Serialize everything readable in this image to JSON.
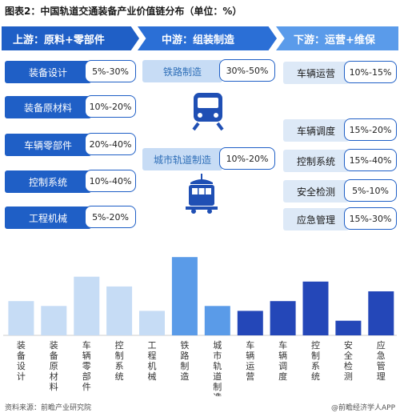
{
  "title": "图表2：中国轨道交通装备产业价值链分布（单位：%）",
  "stages": {
    "upstream": "上游：原料+零部件",
    "midstream": "中游：组装制造",
    "downstream": "下游：运营+维保"
  },
  "upstream_items": [
    {
      "label": "装备设计",
      "value": "5%-30%"
    },
    {
      "label": "装备原材料",
      "value": "10%-20%"
    },
    {
      "label": "车辆零部件",
      "value": "20%-40%"
    },
    {
      "label": "控制系统",
      "value": "10%-40%"
    },
    {
      "label": "工程机械",
      "value": "5%-20%"
    }
  ],
  "midstream_items": [
    {
      "label": "铁路制造",
      "value": "30%-50%"
    },
    {
      "label": "城市轨道制造",
      "value": "10%-20%"
    }
  ],
  "downstream_items": [
    {
      "label": "车辆运营",
      "value": "10%-15%"
    },
    {
      "label": "车辆调度",
      "value": "15%-20%"
    },
    {
      "label": "控制系统",
      "value": "15%-40%"
    },
    {
      "label": "安全检测",
      "value": "5%-10%"
    },
    {
      "label": "应急管理",
      "value": "15%-30%"
    }
  ],
  "icons": [
    "train-front-icon",
    "tram-icon"
  ],
  "colors": {
    "upstream": "#1f5fc6",
    "midstream_bar": "#5a9be8",
    "upstream_bar": "#c6dcf5",
    "downstream_bar": "#2447b8"
  },
  "chart_data": {
    "type": "bar",
    "categories": [
      "装备设计",
      "装备原材料",
      "车辆零部件",
      "控制系统",
      "工程机械",
      "铁路制造",
      "城市轨道制造",
      "车辆运营",
      "车辆调度",
      "控制系统",
      "安全检测",
      "应急管理"
    ],
    "values": [
      17.5,
      15,
      30,
      25,
      12.5,
      40,
      15,
      12.5,
      17.5,
      27.5,
      7.5,
      22.5
    ],
    "groups": [
      "upstream",
      "upstream",
      "upstream",
      "upstream",
      "upstream",
      "midstream",
      "midstream",
      "downstream",
      "downstream",
      "downstream",
      "downstream",
      "downstream"
    ],
    "title": "",
    "xlabel": "",
    "ylabel": "",
    "ylim": [
      0,
      45
    ]
  },
  "footer": {
    "source": "资料来源：前瞻产业研究院",
    "brand": "@前瞻经济学人APP"
  }
}
